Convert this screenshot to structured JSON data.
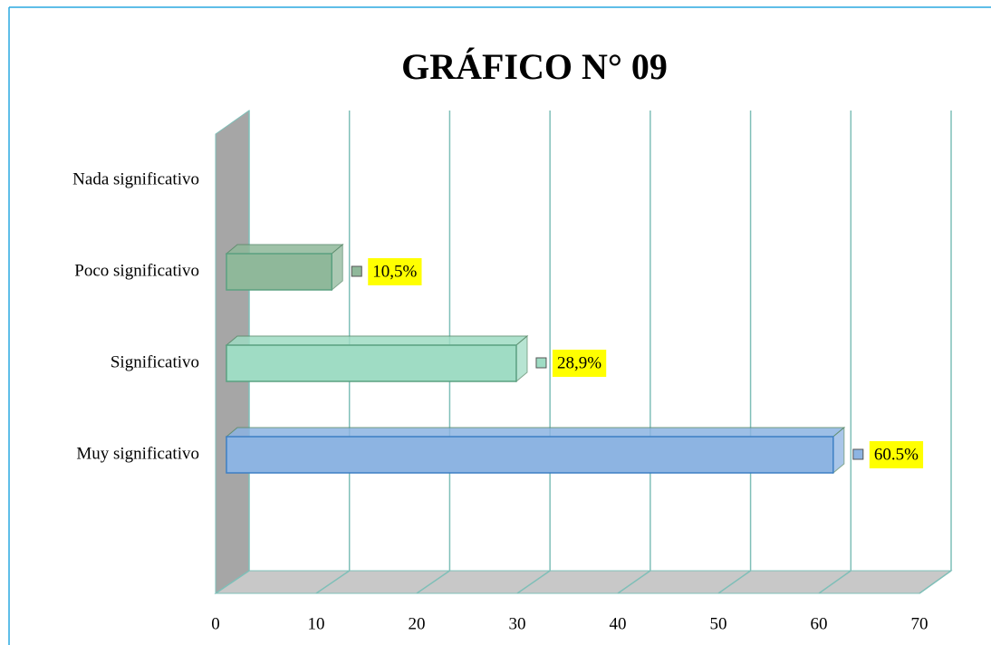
{
  "chart_data": {
    "type": "bar3d_horizontal",
    "title": "GRÁFICO N° 09",
    "categories": [
      "Nada significativo",
      "Poco significativo",
      "Significativo",
      "Muy significativo"
    ],
    "values": [
      null,
      10.5,
      28.9,
      60.5
    ],
    "value_labels": [
      null,
      "10,5%",
      "28,9%",
      "60.5%"
    ],
    "colors": [
      null,
      "#8fb89a",
      "#9fdcc4",
      "#8db4e2"
    ],
    "xlim": [
      0,
      70
    ],
    "xticks": [
      0,
      10,
      20,
      30,
      40,
      50,
      60,
      70
    ],
    "grid": true
  }
}
